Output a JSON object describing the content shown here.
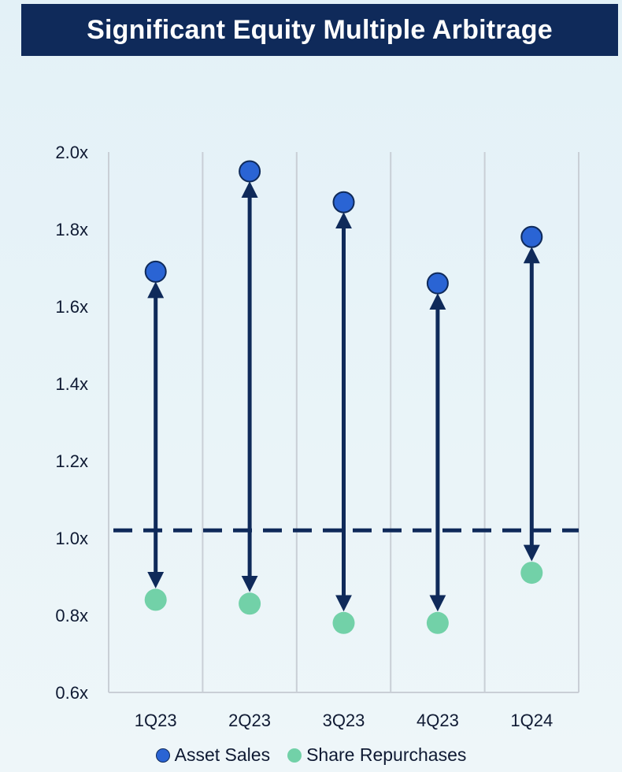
{
  "title": "Significant Equity Multiple Arbitrage",
  "colors": {
    "header_bg": "#0f2a5a",
    "asset_sales": "#2a64d4",
    "share_repurchases": "#72d1a8",
    "arrow": "#0f2a5a",
    "grid": "#c9cfd6"
  },
  "chart_data": {
    "type": "scatter",
    "categories": [
      "1Q23",
      "2Q23",
      "3Q23",
      "4Q23",
      "1Q24"
    ],
    "series": [
      {
        "name": "Asset Sales",
        "values": [
          1.69,
          1.95,
          1.87,
          1.66,
          1.78
        ]
      },
      {
        "name": "Share Repurchases",
        "values": [
          0.84,
          0.83,
          0.78,
          0.78,
          0.91
        ]
      }
    ],
    "reference_line": 1.02,
    "ylim": [
      0.6,
      2.0
    ],
    "yticks": [
      0.6,
      0.8,
      1.0,
      1.2,
      1.4,
      1.6,
      1.8,
      2.0
    ],
    "ytick_labels": [
      "0.6x",
      "0.8x",
      "1.0x",
      "1.2x",
      "1.4x",
      "1.6x",
      "1.8x",
      "2.0x"
    ],
    "grid": "vertical",
    "legend_position": "bottom",
    "annotations": "double-headed arrows between Asset Sales and Share Repurchases per quarter"
  },
  "legend": {
    "items": [
      "Asset Sales",
      "Share Repurchases"
    ]
  }
}
